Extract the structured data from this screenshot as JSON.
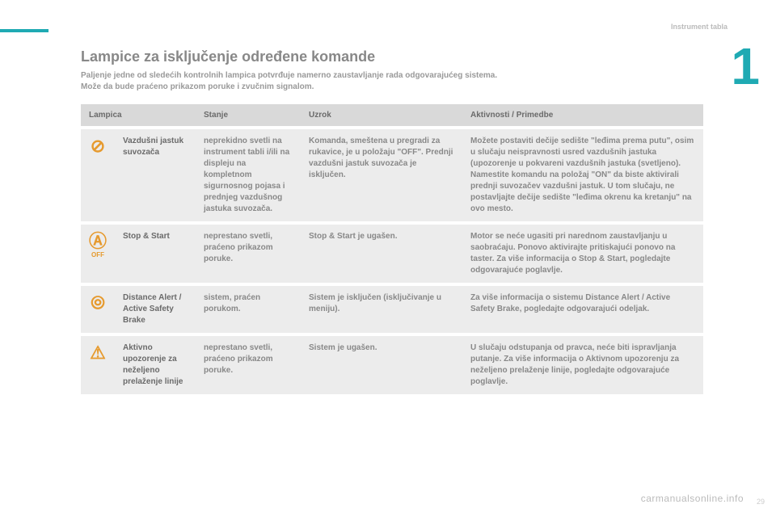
{
  "chapter": {
    "label": "Instrument tabla",
    "number": "1"
  },
  "title": "Lampice za isključenje određene komande",
  "intro_line1": "Paljenje jedne od sledećih kontrolnih lampica potvrđuje namerno zaustavljanje rada odgovarajućeg sistema.",
  "intro_line2": "Može da bude praćeno prikazom poruke i zvučnim signalom.",
  "headers": {
    "lamp": "Lampica",
    "state": "Stanje",
    "cause": "Uzrok",
    "action": "Aktivnosti / Primedbe"
  },
  "rows": [
    {
      "icon_glyph": "⊘",
      "icon_class": "orange",
      "name": "Vazdušni jastuk suvozača",
      "state": "neprekidno svetli na instrument tabli i/ili na displeju na kompletnom sigurnosnog pojasa i prednjeg vazdušnog jastuka suvozača.",
      "cause": "Komanda, smeštena u pregradi za rukavice, je u položaju \"OFF\". Prednji vazdušni jastuk suvozača je isključen.",
      "action": "Možete postaviti dečije sedište \"leđima prema putu\", osim u slučaju neispravnosti usred vazdušnih jastuka (upozorenje u pokvareni vazdušnih jastuka (svetljeno). Namestite komandu na položaj \"ON\" da biste aktivirali prednji suvozačev vazdušni jastuk. U tom slučaju, ne postavljajte dečije sedište \"leđima okrenu ka kretanju\" na ovo mesto."
    },
    {
      "icon_glyph": "Ⓐ",
      "icon_sub": "OFF",
      "icon_class": "orange",
      "name": "Stop & Start",
      "state": "neprestano svetli, praćeno prikazom poruke.",
      "cause": "Stop & Start je ugašen.",
      "action": "Motor se neće ugasiti pri narednom zaustavljanju u saobraćaju. Ponovo aktivirajte pritiskajući ponovo na taster. Za više informacija o Stop & Start, pogledajte odgovarajuće poglavlje."
    },
    {
      "icon_glyph": "⦾",
      "icon_class": "orange",
      "name": "Distance Alert / Active Safety Brake",
      "state": "sistem, praćen porukom.",
      "cause": "Sistem je isključen (isključivanje u meniju).",
      "action": "Za više informacija o sistemu Distance Alert / Active Safety Brake, pogledajte odgovarajući odeljak."
    },
    {
      "icon_glyph": "⚠",
      "icon_class": "orange",
      "name": "Aktivno upozorenje za neželjeno prelaženje linije",
      "state": "neprestano svetli, praćeno prikazom poruke.",
      "cause": "Sistem je ugašen.",
      "action": "U slučaju odstupanja od pravca, neće biti ispravljanja putanje. Za više informacija o Aktivnom upozorenju za neželjeno prelaženje linije, pogledajte odgovarajuće poglavlje."
    }
  ],
  "footer": "carmanualsonline.info",
  "pagenum": "29"
}
